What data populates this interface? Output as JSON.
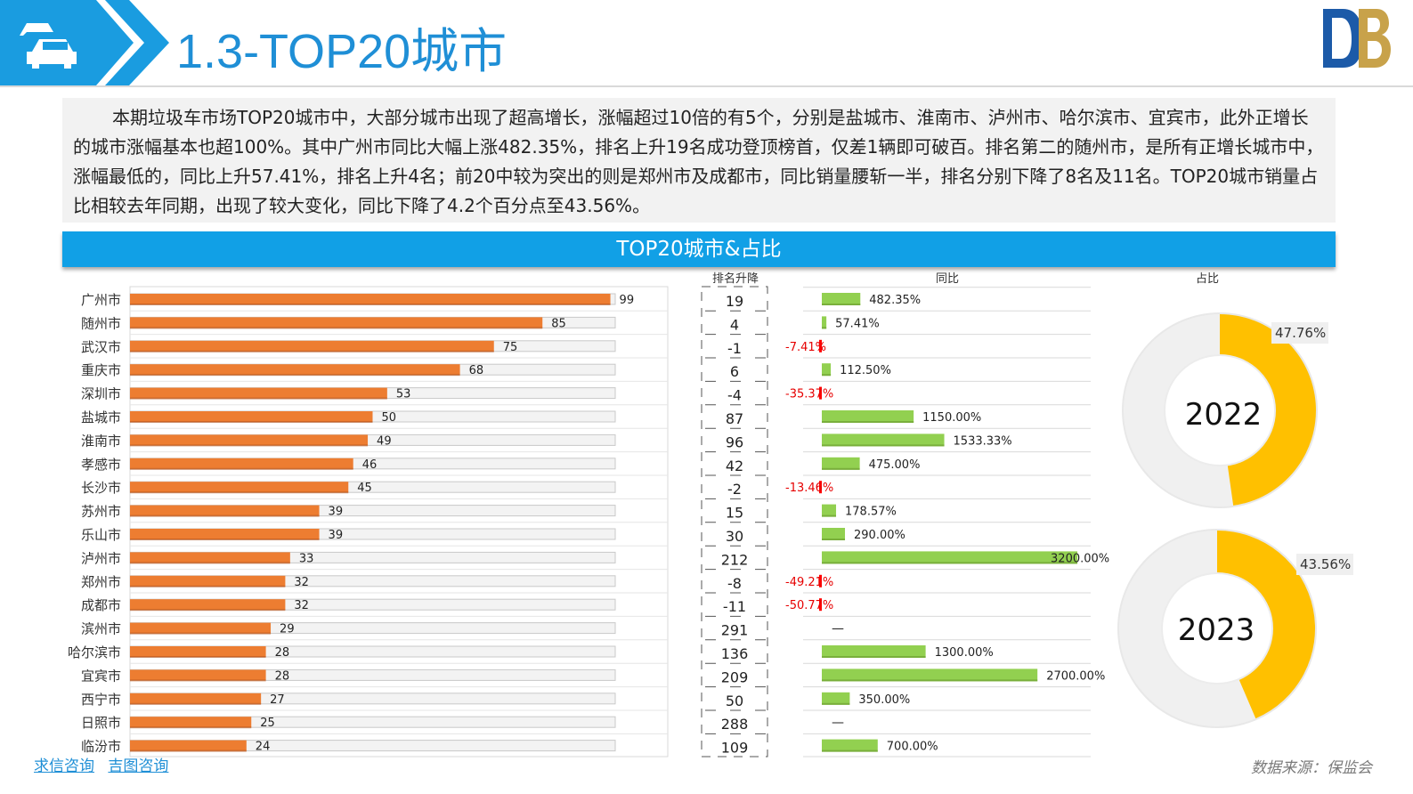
{
  "header": {
    "title": "1.3-TOP20城市",
    "accent_color": "#1f8fd6",
    "icon": "car-icon",
    "logo_icon": "db-logo-icon"
  },
  "summary": {
    "text": "本期垃圾车市场TOP20城市中，大部分城市出现了超高增长，涨幅超过10倍的有5个，分别是盐城市、淮南市、泸州市、哈尔滨市、宜宾市，此外正增长的城市涨幅基本也超100%。其中广州市同比大幅上涨482.35%，排名上升19名成功登顶榜首，仅差1辆即可破百。排名第二的随州市，是所有正增长城市中，涨幅最低的，同比上升57.41%，排名上升4名；前20中较为突出的则是郑州市及成都市，同比销量腰斩一半，排名分别下降了8名及11名。TOP20城市销量占比相较去年同期，出现了较大变化，同比下降了4.2个百分点至43.56%。"
  },
  "chart_banner": {
    "title": "TOP20城市&占比",
    "color": "#11a0e6"
  },
  "chart_data": [
    {
      "type": "bar",
      "orientation": "horizontal",
      "title": "",
      "categories": [
        "广州市",
        "随州市",
        "武汉市",
        "重庆市",
        "深圳市",
        "盐城市",
        "淮南市",
        "孝感市",
        "长沙市",
        "苏州市",
        "乐山市",
        "泸州市",
        "郑州市",
        "成都市",
        "滨州市",
        "哈尔滨市",
        "宜宾市",
        "西宁市",
        "日照市",
        "临汾市"
      ],
      "values": [
        99,
        85,
        75,
        68,
        53,
        50,
        49,
        46,
        45,
        39,
        39,
        33,
        32,
        32,
        29,
        28,
        28,
        27,
        25,
        24
      ],
      "xlim": [
        0,
        100
      ],
      "bar_color": "#ed7d31"
    },
    {
      "type": "table",
      "title": "排名升降",
      "values": [
        "19",
        "4",
        "-1",
        "6",
        "-4",
        "87",
        "96",
        "42",
        "-2",
        "15",
        "30",
        "212",
        "-8",
        "-11",
        "291",
        "136",
        "209",
        "50",
        "288",
        "109"
      ]
    },
    {
      "type": "bar",
      "orientation": "horizontal",
      "title": "同比",
      "categories": [
        "广州市",
        "随州市",
        "武汉市",
        "重庆市",
        "深圳市",
        "盐城市",
        "淮南市",
        "孝感市",
        "长沙市",
        "苏州市",
        "乐山市",
        "泸州市",
        "郑州市",
        "成都市",
        "滨州市",
        "哈尔滨市",
        "宜宾市",
        "西宁市",
        "日照市",
        "临汾市"
      ],
      "values": [
        482.35,
        57.41,
        -7.41,
        112.5,
        -35.37,
        1150,
        1533.33,
        475,
        -13.46,
        178.57,
        290,
        3200,
        -49.21,
        -50.77,
        null,
        1300,
        2700,
        350,
        null,
        700
      ],
      "labels": [
        "482.35%",
        "57.41%",
        "-7.41%",
        "112.50%",
        "-35.37%",
        "1150.00%",
        "1533.33%",
        "475.00%",
        "-13.46%",
        "178.57%",
        "290.00%",
        "3200.00%",
        "-49.21%",
        "-50.77%",
        "—",
        "1300.00%",
        "2700.00%",
        "350.00%",
        "—",
        "700.00%"
      ],
      "positive_color": "#92d050",
      "negative_color": "#ff0000"
    },
    {
      "type": "pie",
      "title": "占比",
      "center_label": "2022",
      "value_label": "47.76%",
      "values": [
        47.76,
        52.24
      ],
      "colors": [
        "#ffc000",
        "#f0f0f0"
      ]
    },
    {
      "type": "pie",
      "title": "",
      "center_label": "2023",
      "value_label": "43.56%",
      "values": [
        43.56,
        56.44
      ],
      "colors": [
        "#ffc000",
        "#f0f0f0"
      ]
    }
  ],
  "footer": {
    "links": [
      "求信咨询",
      "吉图咨询"
    ],
    "source": "数据来源：保监会"
  }
}
